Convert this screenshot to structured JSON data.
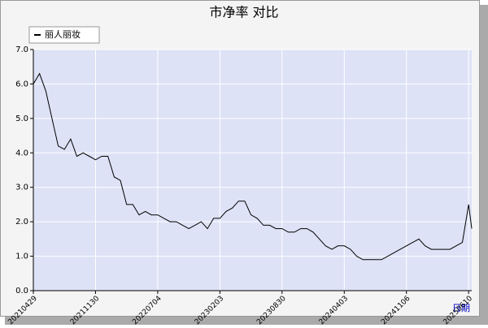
{
  "chart_data": {
    "type": "line",
    "title": "市净率  对比",
    "x_label": "日期",
    "x": [
      0,
      1,
      2,
      3,
      4,
      5,
      6,
      7,
      8,
      9,
      10,
      11,
      12,
      13,
      14,
      15,
      16,
      17,
      18,
      19,
      20,
      21,
      22,
      23,
      24,
      25,
      26,
      27,
      28,
      29,
      30,
      31,
      32,
      33,
      34,
      35,
      36,
      37,
      38,
      39,
      40,
      41,
      42,
      43,
      44,
      45,
      46,
      47,
      48,
      49,
      50,
      51,
      52,
      53,
      54,
      55,
      56,
      57,
      58,
      59,
      60,
      61,
      62,
      63,
      64,
      65,
      66,
      67,
      68,
      69,
      70,
      70.5
    ],
    "series": [
      {
        "name": "丽人丽妆",
        "color": "#000000",
        "values": [
          6.0,
          6.3,
          5.8,
          5.0,
          4.2,
          4.1,
          4.4,
          3.9,
          4.0,
          3.9,
          3.8,
          3.9,
          3.9,
          3.3,
          3.2,
          2.5,
          2.5,
          2.2,
          2.3,
          2.2,
          2.2,
          2.1,
          2.0,
          2.0,
          1.9,
          1.8,
          1.9,
          2.0,
          1.8,
          2.1,
          2.1,
          2.3,
          2.4,
          2.6,
          2.6,
          2.2,
          2.1,
          1.9,
          1.9,
          1.8,
          1.8,
          1.7,
          1.7,
          1.8,
          1.8,
          1.7,
          1.5,
          1.3,
          1.2,
          1.3,
          1.3,
          1.2,
          1.0,
          0.9,
          0.9,
          0.9,
          0.9,
          1.0,
          1.1,
          1.2,
          1.3,
          1.4,
          1.5,
          1.3,
          1.2,
          1.2,
          1.2,
          1.2,
          1.3,
          1.4,
          2.5,
          1.8
        ]
      }
    ],
    "xlim": [
      0,
      70.5
    ],
    "xticks": [
      {
        "value": 0,
        "label": "20210429"
      },
      {
        "value": 10,
        "label": "20211130"
      },
      {
        "value": 20,
        "label": "20220704"
      },
      {
        "value": 30,
        "label": "20230203"
      },
      {
        "value": 40,
        "label": "20230830"
      },
      {
        "value": 50,
        "label": "20240403"
      },
      {
        "value": 60,
        "label": "20241106"
      },
      {
        "value": 70,
        "label": "20250610"
      }
    ],
    "ylim": [
      0,
      7
    ],
    "yticks": [
      {
        "value": 0,
        "label": "0.0"
      },
      {
        "value": 1,
        "label": "1.0"
      },
      {
        "value": 2,
        "label": "2.0"
      },
      {
        "value": 3,
        "label": "3.0"
      },
      {
        "value": 4,
        "label": "4.0"
      },
      {
        "value": 5,
        "label": "5.0"
      },
      {
        "value": 6,
        "label": "6.0"
      },
      {
        "value": 7,
        "label": "7.0"
      }
    ],
    "grid": true,
    "legend": "top-left"
  }
}
